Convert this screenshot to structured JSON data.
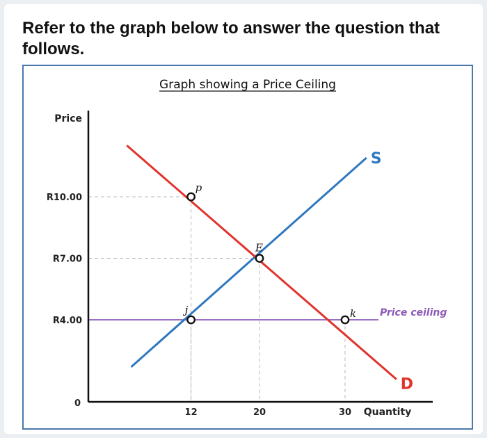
{
  "question": "Refer to the graph below to answer the question that follows.",
  "chart_data": {
    "type": "line",
    "title": "Graph showing a Price Ceiling",
    "xlabel": "Quantity",
    "ylabel": "Price",
    "origin_label": "0",
    "xlim": [
      0,
      40
    ],
    "ylim": [
      0,
      14
    ],
    "x_ticks": [
      {
        "value": 12,
        "label": "12"
      },
      {
        "value": 20,
        "label": "20"
      },
      {
        "value": 30,
        "label": "30"
      }
    ],
    "y_ticks": [
      {
        "value": 10,
        "label": "R10.00"
      },
      {
        "value": 7,
        "label": "R7.00"
      },
      {
        "value": 4,
        "label": "R4.00"
      }
    ],
    "series": [
      {
        "name": "S",
        "color": "#2e78c0",
        "points": [
          [
            5,
            1.7
          ],
          [
            32.5,
            11.9
          ]
        ]
      },
      {
        "name": "D",
        "color": "#e2322b",
        "points": [
          [
            4.5,
            12.5
          ],
          [
            36,
            1.1
          ]
        ]
      }
    ],
    "price_ceiling": {
      "label": "Price ceiling",
      "value": 4,
      "color": "#8d5bb8"
    },
    "points": [
      {
        "label": "p",
        "x": 12,
        "y": 10
      },
      {
        "label": "E",
        "x": 20,
        "y": 7
      },
      {
        "label": "j",
        "x": 12,
        "y": 4
      },
      {
        "label": "k",
        "x": 30,
        "y": 4
      }
    ],
    "grid": false
  }
}
